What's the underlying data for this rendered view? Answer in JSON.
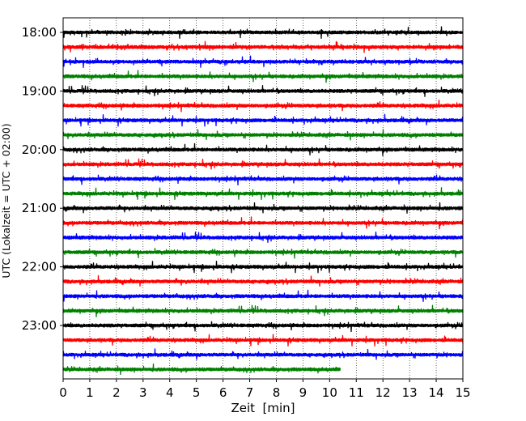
{
  "chart_data": {
    "type": "line",
    "title": "",
    "xlabel": "Zeit  [min]",
    "ylabel": "UTC (Lokalzeit = UTC + 02:00)",
    "xlim": [
      0,
      15
    ],
    "x_ticks": [
      "0",
      "1",
      "2",
      "3",
      "4",
      "5",
      "6",
      "7",
      "8",
      "9",
      "10",
      "11",
      "12",
      "13",
      "14",
      "15"
    ],
    "y_tick_labels": [
      "18:00",
      "19:00",
      "20:00",
      "21:00",
      "22:00",
      "23:00"
    ],
    "grid": "vertical dotted lines at each minute",
    "trace_interval_minutes": 15,
    "first_trace_time": "18:00",
    "trace_colors_cycle": [
      "#000000",
      "#ff0000",
      "#0000ff",
      "#008000"
    ],
    "traces": [
      {
        "start": "18:00",
        "color": "#000000",
        "end_minute": 15
      },
      {
        "start": "18:15",
        "color": "#ff0000",
        "end_minute": 15
      },
      {
        "start": "18:30",
        "color": "#0000ff",
        "end_minute": 15
      },
      {
        "start": "18:45",
        "color": "#008000",
        "end_minute": 15
      },
      {
        "start": "19:00",
        "color": "#000000",
        "end_minute": 15
      },
      {
        "start": "19:15",
        "color": "#ff0000",
        "end_minute": 15
      },
      {
        "start": "19:30",
        "color": "#0000ff",
        "end_minute": 15
      },
      {
        "start": "19:45",
        "color": "#008000",
        "end_minute": 15
      },
      {
        "start": "20:00",
        "color": "#000000",
        "end_minute": 15
      },
      {
        "start": "20:15",
        "color": "#ff0000",
        "end_minute": 15
      },
      {
        "start": "20:30",
        "color": "#0000ff",
        "end_minute": 15
      },
      {
        "start": "20:45",
        "color": "#008000",
        "end_minute": 15
      },
      {
        "start": "21:00",
        "color": "#000000",
        "end_minute": 15
      },
      {
        "start": "21:15",
        "color": "#ff0000",
        "end_minute": 15
      },
      {
        "start": "21:30",
        "color": "#0000ff",
        "end_minute": 15
      },
      {
        "start": "21:45",
        "color": "#008000",
        "end_minute": 15
      },
      {
        "start": "22:00",
        "color": "#000000",
        "end_minute": 15
      },
      {
        "start": "22:15",
        "color": "#ff0000",
        "end_minute": 15
      },
      {
        "start": "22:30",
        "color": "#0000ff",
        "end_minute": 15
      },
      {
        "start": "22:45",
        "color": "#008000",
        "end_minute": 15
      },
      {
        "start": "23:00",
        "color": "#000000",
        "end_minute": 15
      },
      {
        "start": "23:15",
        "color": "#ff0000",
        "end_minute": 15
      },
      {
        "start": "23:30",
        "color": "#0000ff",
        "end_minute": 15
      },
      {
        "start": "23:45",
        "color": "#008000",
        "end_minute": 10.4
      }
    ]
  }
}
